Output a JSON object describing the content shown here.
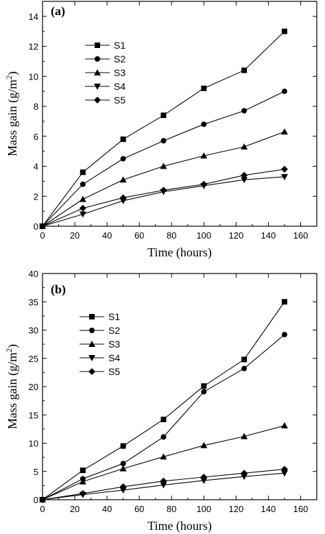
{
  "chart_data": [
    {
      "type": "line",
      "panel_label": "(a)",
      "xlabel": "Time (hours)",
      "ylabel_main": "Mass gain  (g/m",
      "ylabel_sup": "2",
      "ylabel_close": ")",
      "xlim": [
        0,
        170
      ],
      "ylim": [
        0,
        15
      ],
      "xticks": [
        0,
        20,
        40,
        60,
        80,
        100,
        120,
        140,
        160
      ],
      "yticks": [
        0,
        2,
        4,
        6,
        8,
        10,
        12,
        14
      ],
      "x": [
        0,
        25,
        50,
        75,
        100,
        125,
        150
      ],
      "legend_position": "upper-left",
      "series": [
        {
          "name": "S1",
          "marker": "square",
          "values": [
            0,
            3.6,
            5.8,
            7.4,
            9.2,
            10.4,
            13.0
          ]
        },
        {
          "name": "S2",
          "marker": "circle",
          "values": [
            0,
            2.8,
            4.5,
            5.7,
            6.8,
            7.7,
            9.0
          ]
        },
        {
          "name": "S3",
          "marker": "triangle-up",
          "values": [
            0,
            1.8,
            3.1,
            4.0,
            4.7,
            5.3,
            6.3
          ]
        },
        {
          "name": "S4",
          "marker": "triangle-down",
          "values": [
            0,
            0.8,
            1.7,
            2.3,
            2.7,
            3.1,
            3.3
          ]
        },
        {
          "name": "S5",
          "marker": "diamond",
          "values": [
            0,
            1.2,
            1.9,
            2.4,
            2.8,
            3.4,
            3.8
          ]
        }
      ]
    },
    {
      "type": "line",
      "panel_label": "(b)",
      "xlabel": "Time (hours)",
      "ylabel_main": "Mass gain  (g/m",
      "ylabel_sup": "2",
      "ylabel_close": ")",
      "xlim": [
        0,
        170
      ],
      "ylim": [
        0,
        40
      ],
      "xticks": [
        0,
        20,
        40,
        60,
        80,
        100,
        120,
        140,
        160
      ],
      "yticks": [
        0,
        5,
        10,
        15,
        20,
        25,
        30,
        35,
        40
      ],
      "x": [
        0,
        25,
        50,
        75,
        100,
        125,
        150
      ],
      "legend_position": "upper-left",
      "series": [
        {
          "name": "S1",
          "marker": "square",
          "values": [
            0,
            5.2,
            9.5,
            14.2,
            20.1,
            24.8,
            35.0
          ]
        },
        {
          "name": "S2",
          "marker": "circle",
          "values": [
            0,
            3.7,
            6.4,
            11.1,
            19.1,
            23.2,
            29.2
          ]
        },
        {
          "name": "S3",
          "marker": "triangle-up",
          "values": [
            0,
            3.2,
            5.5,
            7.6,
            9.6,
            11.2,
            13.1
          ]
        },
        {
          "name": "S4",
          "marker": "triangle-down",
          "values": [
            0,
            0.9,
            1.7,
            2.6,
            3.4,
            4.1,
            4.7
          ]
        },
        {
          "name": "S5",
          "marker": "diamond",
          "values": [
            0,
            1.1,
            2.3,
            3.3,
            4.0,
            4.7,
            5.4
          ]
        }
      ]
    }
  ]
}
